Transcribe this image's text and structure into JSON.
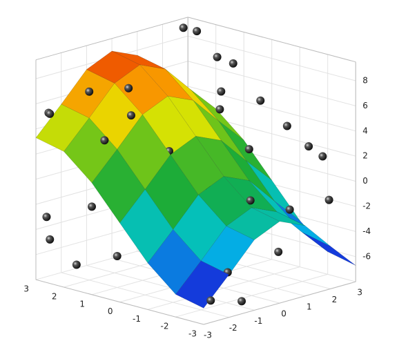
{
  "chart_data": {
    "type": "surface3d",
    "xlim": [
      -3,
      3
    ],
    "ylim": [
      -3,
      3
    ],
    "zlim": [
      -8,
      9.5
    ],
    "xticks": [
      -3,
      -2,
      -1,
      0,
      1,
      2,
      3
    ],
    "yticks": [
      -3,
      -2,
      -1,
      0,
      1,
      2,
      3
    ],
    "zticks": [
      -6,
      -4,
      -2,
      0,
      2,
      4,
      6,
      8
    ],
    "grid": true,
    "surface": {
      "x": [
        -3,
        -2,
        -1,
        0,
        1,
        2,
        3
      ],
      "y": [
        -3,
        -2,
        -1,
        0,
        1,
        2,
        3
      ],
      "z": [
        [
          -6.7,
          -4.6,
          -2.4,
          -1.5,
          -2.4,
          -4.6,
          -6.7
        ],
        [
          -6.2,
          -4.1,
          -1.9,
          -1.0,
          -1.9,
          -4.1,
          -6.2
        ],
        [
          -4.3,
          -2.2,
          0.0,
          0.9,
          0.0,
          -2.2,
          -4.3
        ],
        [
          -1.7,
          0.4,
          2.6,
          3.5,
          2.6,
          0.4,
          -1.7
        ],
        [
          0.9,
          3.0,
          5.2,
          6.1,
          5.2,
          3.0,
          0.9
        ],
        [
          2.8,
          4.9,
          7.1,
          8.0,
          7.1,
          4.9,
          2.8
        ],
        [
          3.3,
          5.4,
          7.6,
          8.5,
          7.6,
          5.4,
          3.3
        ]
      ]
    },
    "points": {
      "x": [
        2.5,
        2.8,
        1.5,
        1.2,
        2,
        1.5,
        3,
        2.5,
        1,
        0.5,
        0,
        -0.5,
        0.5,
        -1,
        -1.5,
        -2,
        -1,
        0,
        0.5,
        -0.5,
        0,
        1,
        -1.5,
        -0.5,
        1.5,
        -2,
        -2.5,
        2.8,
        2.5,
        -1,
        -2,
        -1.5,
        -2.5,
        -2.8,
        -3,
        2,
        -2.5,
        0.5,
        -1,
        1
      ],
      "y": [
        2.8,
        2.6,
        2.5,
        2.8,
        -2,
        -1,
        -2.5,
        -3,
        -2.5,
        -2,
        1,
        2,
        1.5,
        2.5,
        2.8,
        2.8,
        1,
        0,
        -0.5,
        -1,
        -2,
        -3,
        0.5,
        0,
        -1.5,
        1.5,
        2.5,
        -2.8,
        -3,
        -1,
        -1,
        -2,
        -1.5,
        -2.5,
        -1.5,
        -2.5,
        0.5,
        -1.5,
        0.5,
        -2
      ],
      "z": [
        8.8,
        9.0,
        7.5,
        7.0,
        7,
        7,
        5,
        5.5,
        4,
        6,
        6.5,
        5.5,
        4.5,
        3.5,
        2,
        1.5,
        2.5,
        2.8,
        2.3,
        0.5,
        -0.5,
        -1,
        -1,
        -0.5,
        0.5,
        -2,
        -1.5,
        -3,
        -4.5,
        -2.5,
        -3.5,
        -4,
        -5,
        -6.5,
        -7,
        -6.5,
        -4.5,
        -4.2,
        -5,
        -5.5
      ]
    }
  }
}
